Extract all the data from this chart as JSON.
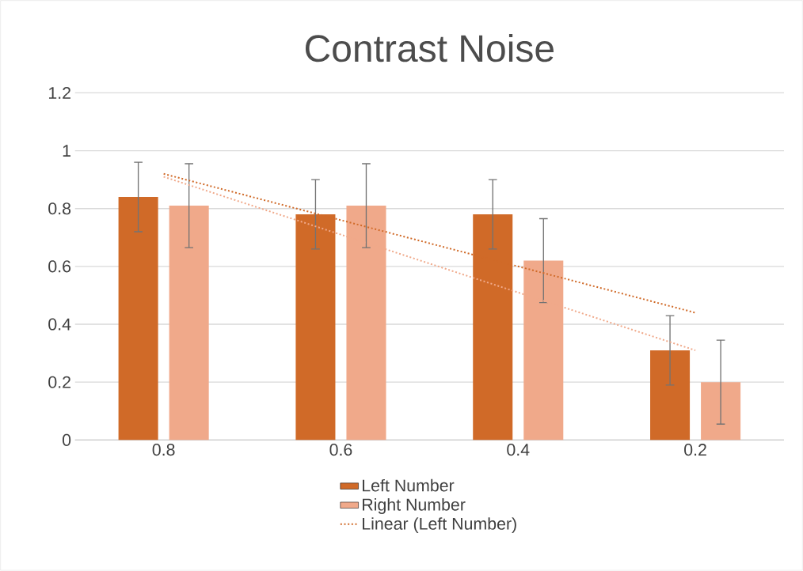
{
  "chart_data": {
    "type": "bar",
    "title": "Contrast Noise",
    "categories": [
      "0.8",
      "0.6",
      "0.4",
      "0.2"
    ],
    "series": [
      {
        "name": "Left Number",
        "color": "#d06a28",
        "values": [
          0.84,
          0.78,
          0.78,
          0.31
        ],
        "errors": [
          0.12,
          0.12,
          0.12,
          0.12
        ]
      },
      {
        "name": "Right Number",
        "color": "#f0a98a",
        "values": [
          0.81,
          0.81,
          0.62,
          0.2
        ],
        "errors": [
          0.145,
          0.145,
          0.145,
          0.145
        ]
      },
      {
        "name": "Linear (Left Number)",
        "type": "line",
        "line_style": "dotted",
        "color": "#d06a28",
        "values": [
          0.92,
          0.76,
          0.6,
          0.44
        ]
      },
      {
        "type": "line",
        "line_style": "dotted",
        "color": "#f0a98a",
        "values": [
          0.91,
          0.71,
          0.51,
          0.31
        ]
      }
    ],
    "ylim": [
      0,
      1.2
    ],
    "yticks": [
      0,
      0.2,
      0.4,
      0.6,
      0.8,
      1,
      1.2
    ],
    "grid": "y",
    "legend": "bottom"
  }
}
